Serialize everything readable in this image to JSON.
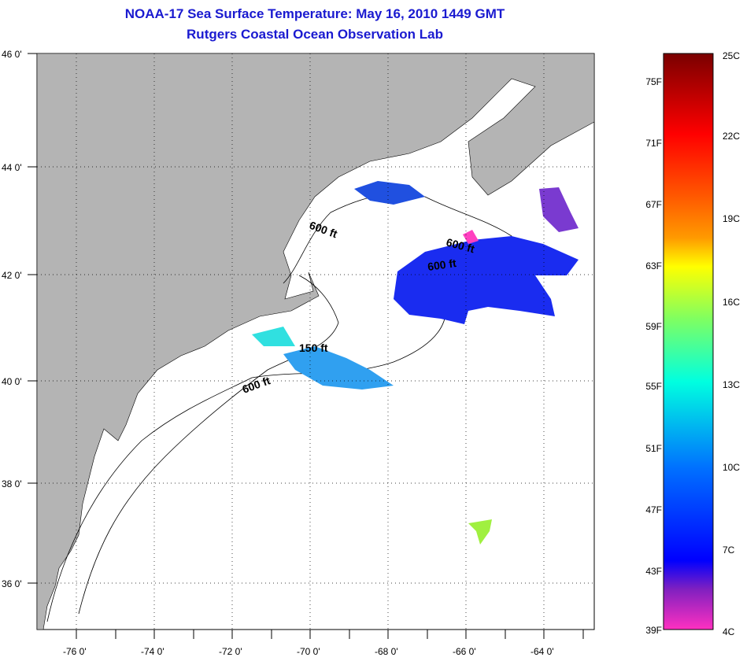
{
  "title": {
    "line1": "NOAA-17 Sea Surface Temperature:  May 16, 2010 1449 GMT",
    "line2": "Rutgers Coastal Ocean Observation Lab"
  },
  "lon_labels": [
    "-76 0'",
    "-74 0'",
    "-72 0'",
    "-70 0'",
    "-68 0'",
    "-66 0'",
    "-64 0'"
  ],
  "lat_labels": [
    "46 0'",
    "44 0'",
    "42 0'",
    "40 0'",
    "38 0'",
    "36 0'"
  ],
  "contour_labels": [
    "600 ft",
    "600 ft",
    "600 ft",
    "150 ft",
    "600 ft"
  ],
  "colorbar": {
    "fahrenheit": [
      "75F",
      "71F",
      "67F",
      "63F",
      "59F",
      "55F",
      "51F",
      "47F",
      "43F",
      "39F"
    ],
    "celsius": [
      "25C",
      "22C",
      "19C",
      "16C",
      "13C",
      "10C",
      "7C",
      "4C"
    ]
  },
  "colors": {
    "land": "#b4b4b4",
    "title": "#1a1ad0"
  }
}
